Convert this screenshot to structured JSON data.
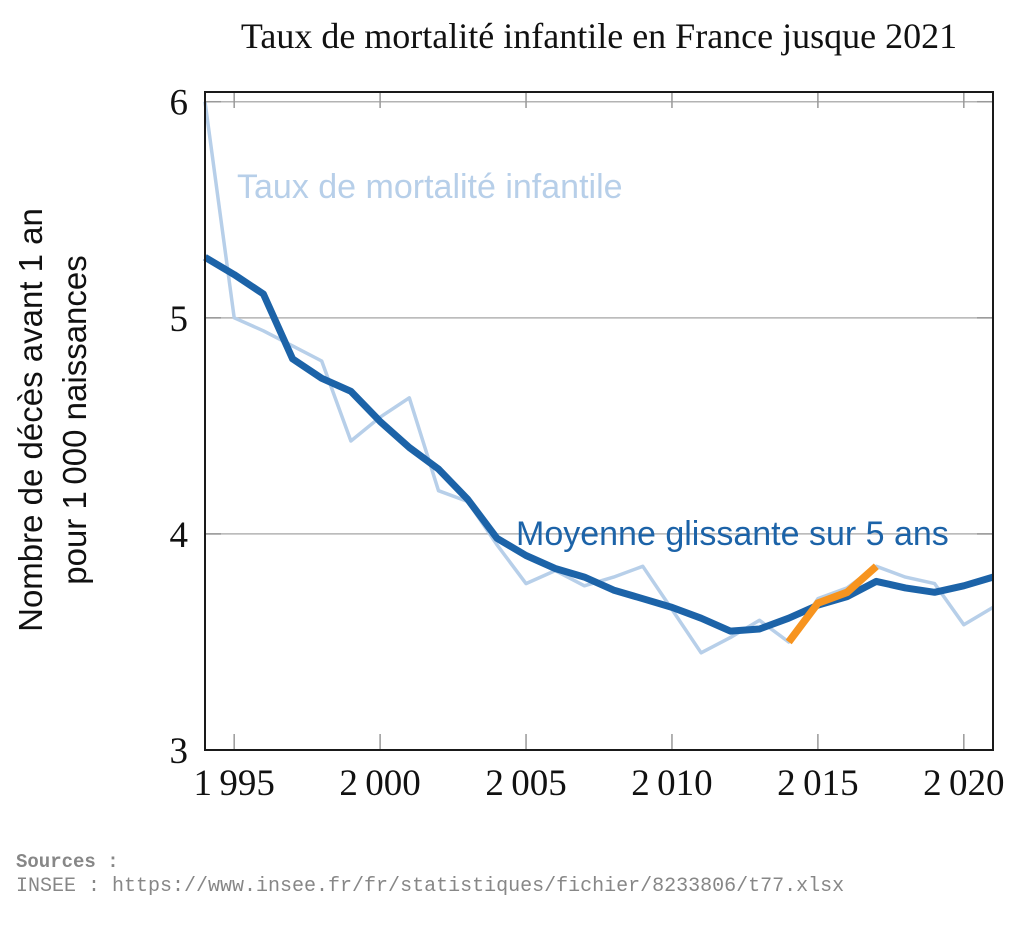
{
  "title": "Taux de mortalité infantile en France jusque 2021",
  "colors": {
    "annual_line": "#b7cfe9",
    "moving_average_line": "#1c63a8",
    "highlight_line": "#f7941f",
    "grid": "#b3b3b3",
    "tick": "#999999",
    "frame": "#1a1a1a",
    "text": "#111111",
    "sources_text": "#878787"
  },
  "chart_data": {
    "type": "line",
    "title": "Taux de mortalité infantile en France jusque 2021",
    "ylabel_line1": "Nombre de décès avant 1 an",
    "ylabel_line2": "pour 1 000 naissances",
    "xlabel": "",
    "xlim": [
      1994,
      2021
    ],
    "ylim": [
      3,
      6.045
    ],
    "x_ticks": [
      1995,
      2000,
      2005,
      2010,
      2015,
      2020
    ],
    "x_tick_labels": [
      "1 995",
      "2 000",
      "2 005",
      "2 010",
      "2 015",
      "2 020"
    ],
    "y_ticks": [
      3,
      4,
      5,
      6
    ],
    "y_tick_labels": [
      "3",
      "4",
      "5",
      "6"
    ],
    "gridlines_y": [
      4,
      5,
      6
    ],
    "grid": "horizontal-only",
    "legend_position": "inline-labels",
    "x": [
      1994,
      1995,
      1996,
      1997,
      1998,
      1999,
      2000,
      2001,
      2002,
      2003,
      2004,
      2005,
      2006,
      2007,
      2008,
      2009,
      2010,
      2011,
      2012,
      2013,
      2014,
      2015,
      2016,
      2017,
      2018,
      2019,
      2020,
      2021
    ],
    "series": [
      {
        "name": "Taux de mortalité infantile",
        "color": "#b7cfe9",
        "width": 3.5,
        "values": [
          6.0,
          5.0,
          4.94,
          4.87,
          4.8,
          4.43,
          4.54,
          4.63,
          4.2,
          4.15,
          3.95,
          3.77,
          3.83,
          3.76,
          3.8,
          3.85,
          3.65,
          3.45,
          3.52,
          3.6,
          3.5,
          3.7,
          3.75,
          3.85,
          3.8,
          3.77,
          3.58,
          3.66
        ]
      },
      {
        "name": "Moyenne glissante sur 5 ans",
        "color": "#1c63a8",
        "width": 7,
        "values": [
          5.28,
          5.2,
          5.11,
          4.81,
          4.72,
          4.66,
          4.52,
          4.4,
          4.3,
          4.16,
          3.98,
          3.9,
          3.84,
          3.8,
          3.74,
          3.7,
          3.66,
          3.61,
          3.55,
          3.56,
          3.61,
          3.67,
          3.71,
          3.78,
          3.75,
          3.73,
          3.76,
          3.8
        ]
      }
    ],
    "highlight_segment": {
      "name": "orange-highlight-2014-2017",
      "color": "#f7941f",
      "width": 7.5,
      "x": [
        2014,
        2015,
        2016,
        2017
      ],
      "values": [
        3.5,
        3.68,
        3.73,
        3.85
      ]
    }
  },
  "sources": {
    "heading": "Sources :",
    "line": "INSEE : https://www.insee.fr/fr/statistiques/fichier/8233806/t77.xlsx"
  }
}
